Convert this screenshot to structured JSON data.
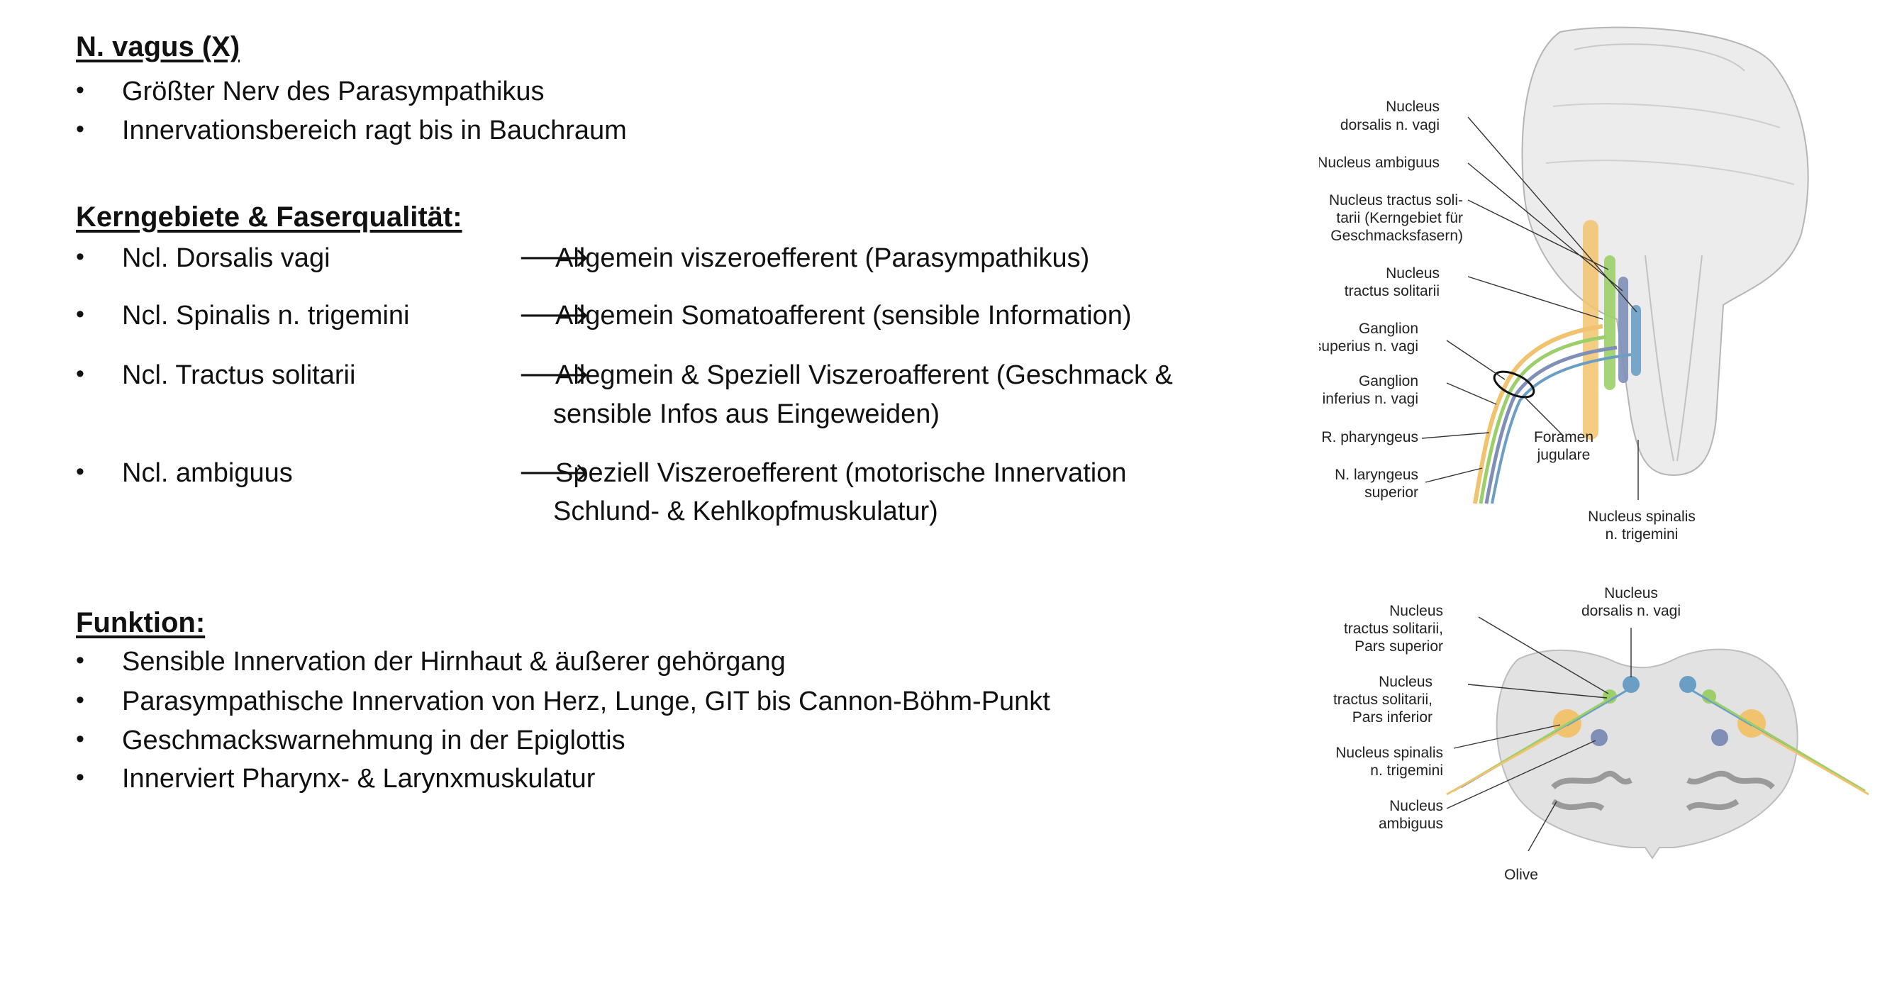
{
  "title": "N. vagus (X)",
  "intro": [
    "Größter Nerv des Parasympathikus",
    "Innervationsbereich ragt bis in Bauchraum"
  ],
  "nuclei_heading": "Kerngebiete & Faserqualität:",
  "bullet_char": "•",
  "arrow_char": "🡒",
  "nuclei": [
    {
      "name": "Ncl. Dorsalis vagi",
      "desc1": "Allgemein viszeroefferent (Parasympathikus)",
      "desc2": ""
    },
    {
      "name": "Ncl. Spinalis n. trigemini",
      "desc1": "Allgemein Somatoafferent (sensible Information)",
      "desc2": ""
    },
    {
      "name": "Ncl. Tractus solitarii",
      "desc1": "Allegmein & Speziell Viszeroafferent (Geschmack &",
      "desc2": "sensible Infos aus Eingeweiden)"
    },
    {
      "name": "Ncl. ambiguus",
      "desc1": "Speziell Viszeroefferent (motorische Innervation",
      "desc2": "Schlund- & Kehlkopfmuskulatur)"
    }
  ],
  "function_heading": "Funktion:",
  "functions": [
    "Sensible Innervation der Hirnhaut & äußerer gehörgang",
    "Parasympathische Innervation von Herz, Lunge, GIT bis Cannon-Böhm-Punkt",
    "Geschmackswarnehmung in der Epiglottis",
    "Innerviert Pharynx- & Larynxmuskulatur"
  ],
  "figure_top": {
    "labels": {
      "dorsalis_1": "Nucleus",
      "dorsalis_2": "dorsalis n. vagi",
      "ambiguus": "Nucleus ambiguus",
      "ts_soli_1": "Nucleus tractus soli-",
      "ts_soli_2": "tarii (Kerngebiet für",
      "ts_soli_3": "Geschmacksfasern)",
      "ts_1": "Nucleus",
      "ts_2": "tractus solitarii",
      "gs_1": "Ganglion",
      "gs_2": "superius n. vagi",
      "gi_1": "Ganglion",
      "gi_2": "inferius n. vagi",
      "r_pharyngeus": "R. pharyngeus",
      "nl_1": "N. laryngeus",
      "nl_2": "superior",
      "foramen_1": "Foramen",
      "foramen_2": "jugulare",
      "spinalis_1": "Nucleus spinalis",
      "spinalis_2": "n. trigemini"
    }
  },
  "figure_bottom": {
    "labels": {
      "dorsalis_1": "Nucleus",
      "dorsalis_2": "dorsalis n. vagi",
      "tsps_1": "Nucleus",
      "tsps_2": "tractus solitarii,",
      "tsps_3": "Pars superior",
      "tspi_1": "Nucleus",
      "tspi_2": "tractus solitarii,",
      "tspi_3": "Pars inferior",
      "spinalis_1": "Nucleus spinalis",
      "spinalis_2": "n. trigemini",
      "ambiguus_1": "Nucleus",
      "ambiguus_2": "ambiguus",
      "olive": "Olive"
    }
  },
  "colors": {
    "dorsalis": "#6a9ec4",
    "ambiguus": "#7f8fb8",
    "tractus_solitarii": "#9ccf6a",
    "spinalis": "#f2c36e",
    "brainstem": "#e9e9e9",
    "section": "#dcdcdc"
  }
}
